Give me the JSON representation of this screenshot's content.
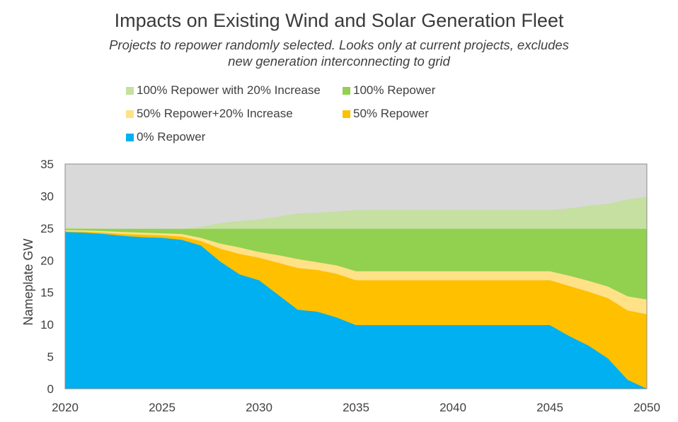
{
  "chart_data": {
    "type": "area",
    "stacked": true,
    "title": "Impacts on Existing Wind and Solar Generation Fleet",
    "subtitle_line1": "Projects to repower randomly selected. Looks only at current projects, excludes",
    "subtitle_line2": "new generation interconnecting to grid",
    "xlabel": "",
    "ylabel": "Nameplate GW",
    "xlim": [
      2020,
      2050
    ],
    "ylim": [
      0,
      35
    ],
    "xticks": [
      2020,
      2025,
      2030,
      2035,
      2040,
      2045,
      2050
    ],
    "yticks": [
      0,
      5,
      10,
      15,
      20,
      25,
      30,
      35
    ],
    "plot_background": "#d9d9d9",
    "x": [
      2020,
      2021,
      2022,
      2023,
      2024,
      2025,
      2026,
      2027,
      2028,
      2029,
      2030,
      2031,
      2032,
      2033,
      2034,
      2035,
      2036,
      2037,
      2038,
      2039,
      2040,
      2041,
      2042,
      2043,
      2044,
      2045,
      2046,
      2047,
      2048,
      2049,
      2050
    ],
    "series": [
      {
        "name": "0% Repower",
        "color": "#00b0f0",
        "values": [
          24.4,
          24.3,
          24.1,
          23.8,
          23.6,
          23.5,
          23.2,
          22.3,
          19.8,
          17.8,
          16.9,
          14.6,
          12.3,
          12.0,
          11.1,
          9.9,
          9.9,
          9.9,
          9.9,
          9.9,
          9.9,
          9.9,
          9.9,
          9.9,
          9.9,
          9.9,
          8.2,
          6.7,
          4.7,
          1.4,
          0.0
        ]
      },
      {
        "name": "50% Repower",
        "color": "#ffc000",
        "values": [
          24.5,
          24.45,
          24.3,
          24.1,
          24.0,
          23.9,
          23.7,
          23.0,
          21.8,
          21.0,
          20.4,
          19.6,
          18.8,
          18.5,
          17.9,
          16.9,
          16.9,
          16.9,
          16.9,
          16.9,
          16.9,
          16.9,
          16.9,
          16.9,
          16.9,
          16.9,
          16.0,
          15.1,
          14.1,
          12.2,
          11.6
        ]
      },
      {
        "name": "50% Repower+20% Increase",
        "color": "#ffe188",
        "values": [
          24.7,
          24.65,
          24.55,
          24.4,
          24.3,
          24.2,
          24.1,
          23.5,
          22.6,
          22.0,
          21.3,
          20.8,
          20.2,
          19.7,
          19.2,
          18.3,
          18.3,
          18.3,
          18.3,
          18.3,
          18.3,
          18.3,
          18.3,
          18.3,
          18.3,
          18.3,
          17.6,
          16.8,
          15.9,
          14.4,
          13.9
        ]
      },
      {
        "name": "100% Repower",
        "color": "#92d050",
        "values": [
          24.9,
          24.9,
          24.9,
          24.9,
          24.9,
          24.9,
          24.9,
          24.9,
          24.9,
          24.9,
          24.9,
          24.9,
          24.9,
          24.9,
          24.9,
          24.9,
          24.9,
          24.9,
          24.9,
          24.9,
          24.9,
          24.9,
          24.9,
          24.9,
          24.9,
          24.9,
          24.9,
          24.9,
          24.9,
          24.9,
          24.9
        ]
      },
      {
        "name": "100% Repower with 20% Increase",
        "color": "#c5e0a0",
        "values": [
          25.1,
          25.0,
          24.95,
          24.9,
          24.9,
          24.9,
          24.9,
          25.2,
          25.8,
          26.1,
          26.4,
          26.8,
          27.3,
          27.4,
          27.6,
          27.8,
          27.8,
          27.8,
          27.8,
          27.8,
          27.8,
          27.8,
          27.8,
          27.8,
          27.8,
          27.8,
          28.1,
          28.5,
          28.8,
          29.5,
          29.9
        ]
      }
    ],
    "legend": [
      {
        "label": "100% Repower with 20% Increase",
        "color": "#c5e0a0"
      },
      {
        "label": "100% Repower",
        "color": "#92d050"
      },
      {
        "label": "50% Repower+20% Increase",
        "color": "#ffe188"
      },
      {
        "label": "50% Repower",
        "color": "#ffc000"
      },
      {
        "label": "0% Repower",
        "color": "#00b0f0"
      }
    ],
    "legend_position": "top"
  }
}
